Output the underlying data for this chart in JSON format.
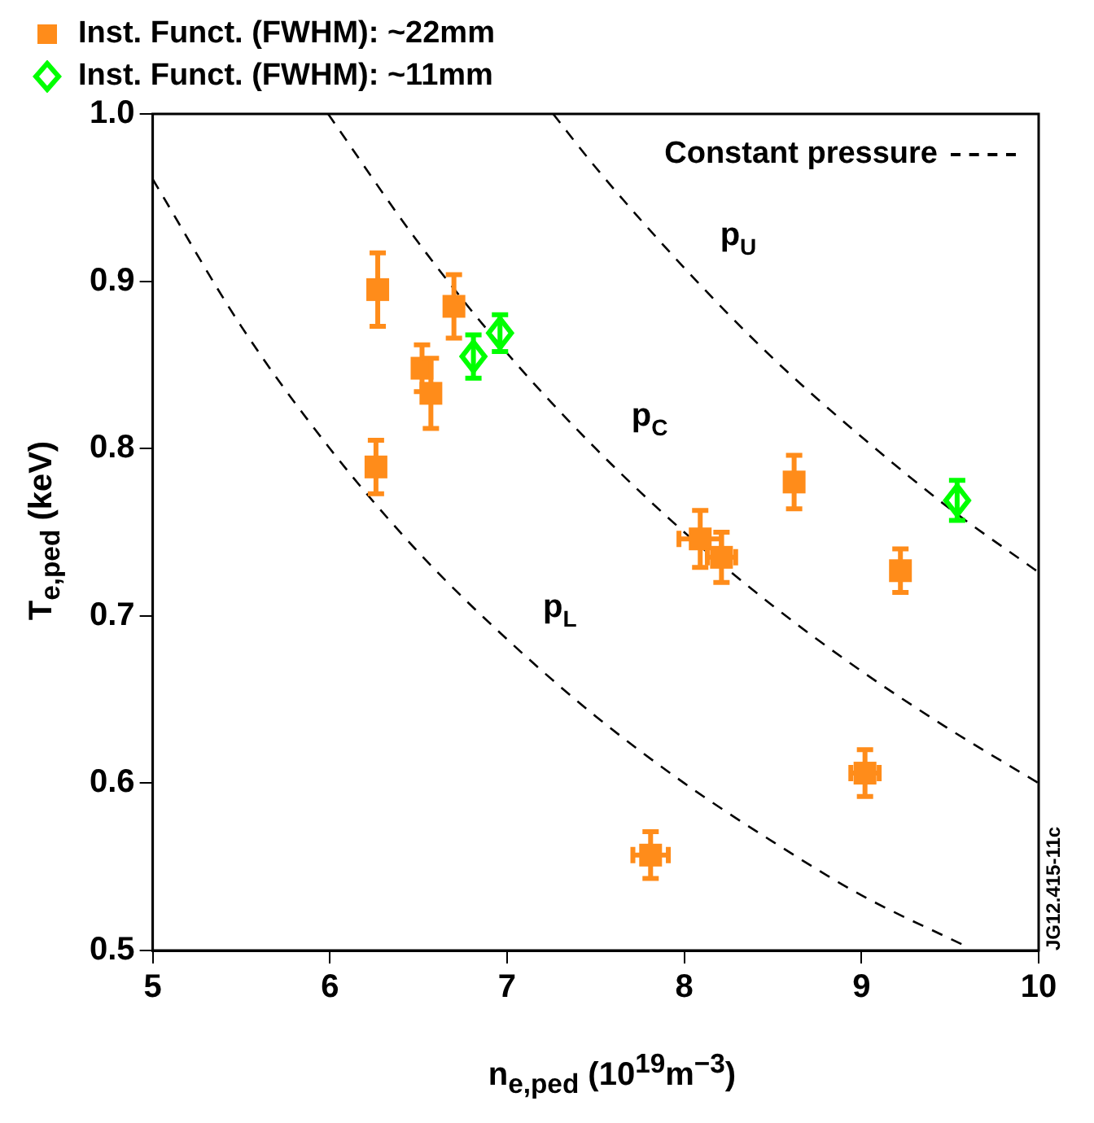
{
  "chart_data": {
    "type": "scatter",
    "xlabel": "n$_{e,ped}$ (10$^{19}$m$^{−3}$)",
    "ylabel": "T$_{e,ped}$ (keV)",
    "xlim": [
      5,
      10
    ],
    "xticks": [
      5,
      6,
      7,
      8,
      9,
      10
    ],
    "ylim": [
      0.5,
      1.0
    ],
    "yticks": [
      0.5,
      0.6,
      0.7,
      0.8,
      0.9,
      {
        "value": 1,
        "label": "1.0"
      }
    ],
    "grid": false,
    "legend": "top left",
    "legend_title": "Constant pressure",
    "series": [
      {
        "name": "Inst. Funct. (FWHM): ~22mm",
        "color": "#ff8c1a",
        "marker": "square",
        "x": [
          6.27,
          6.26,
          6.7,
          6.52,
          6.57,
          8.09,
          8.21,
          8.62,
          9.22,
          9.02,
          7.81
        ],
        "values": [
          0.895,
          0.789,
          0.885,
          0.848,
          0.833,
          0.746,
          0.735,
          0.78,
          0.727,
          0.606,
          0.557
        ],
        "errors": [
          0.022,
          0.016,
          0.019,
          0.014,
          0.021,
          0.017,
          0.015,
          0.016,
          0.013,
          0.014,
          0.014
        ],
        "xerrors": [
          null,
          null,
          null,
          null,
          null,
          0.12,
          0.08,
          null,
          null,
          0.08,
          0.1
        ]
      },
      {
        "name": "Inst. Funct. (FWHM): ~11mm",
        "color": "#00ff00",
        "marker": "diamond",
        "x": [
          6.81,
          6.96,
          9.54
        ],
        "values": [
          0.855,
          0.869,
          0.769
        ],
        "errors": [
          0.013,
          0.011,
          0.012
        ]
      },
      {
        "name": "p$_{L}$",
        "type": "line",
        "color": "#000000",
        "line_style": "dashed",
        "marker": "none",
        "x": [
          5,
          5.5,
          6,
          6.5,
          7,
          7.5,
          8,
          8.5,
          9,
          9.58
        ],
        "values": [
          0.961,
          0.873,
          0.8,
          0.738,
          0.686,
          0.64,
          0.6,
          0.565,
          0.533,
          0.503
        ]
      },
      {
        "name": "p$_{C}$",
        "type": "line",
        "color": "#000000",
        "line_style": "dashed",
        "marker": "none",
        "x": [
          5.99,
          6.5,
          7,
          7.5,
          8,
          8.5,
          9,
          9.5,
          10
        ],
        "values": [
          1.0,
          0.923,
          0.857,
          0.8,
          0.75,
          0.706,
          0.667,
          0.632,
          0.6
        ]
      },
      {
        "name": "p$_{U}$",
        "type": "line",
        "color": "#000000",
        "line_style": "dashed",
        "marker": "none",
        "x": [
          7.26,
          7.5,
          8,
          8.5,
          9,
          9.5,
          10
        ],
        "values": [
          1.0,
          0.968,
          0.908,
          0.854,
          0.807,
          0.764,
          0.726
        ]
      }
    ],
    "annotations": [
      "JG12.415-11c"
    ]
  }
}
